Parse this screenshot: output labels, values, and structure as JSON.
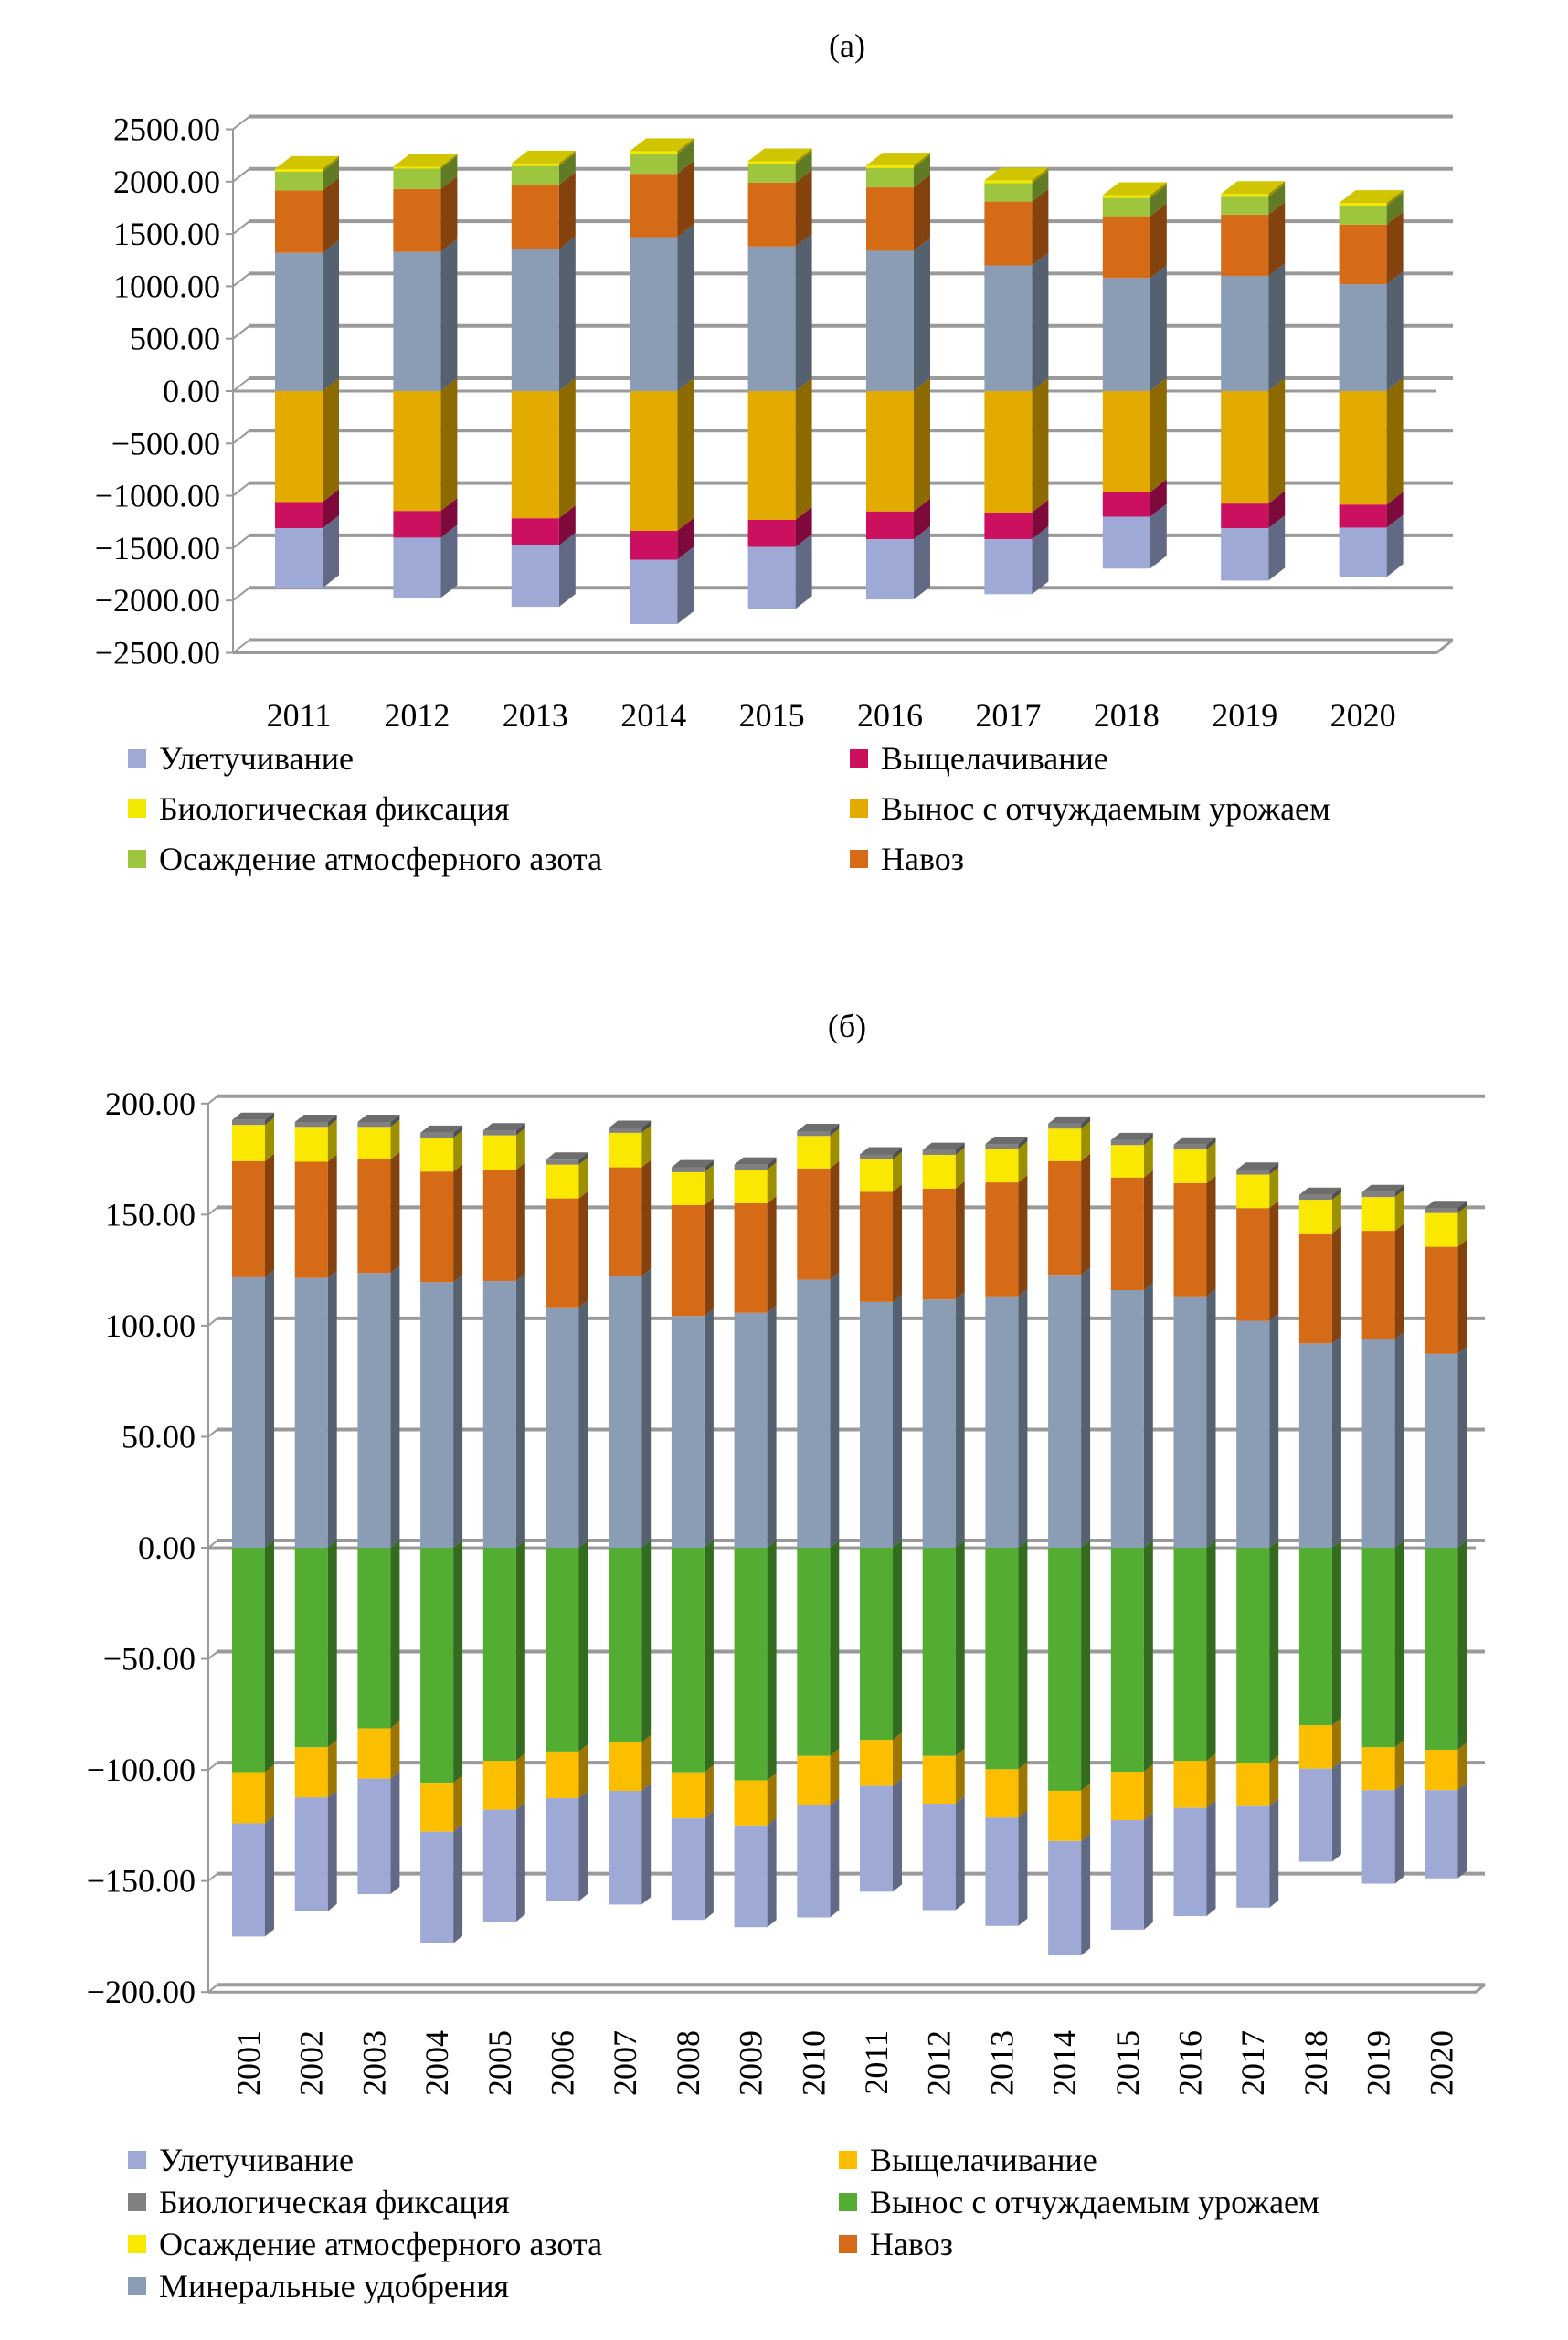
{
  "chart_data": [
    {
      "type": "bar",
      "stacked": true,
      "three_d": true,
      "title": "(а)",
      "xlabel": "",
      "ylabel": "",
      "ylim": [
        -2500,
        2500
      ],
      "yticks": [
        "2500.00",
        "2000.00",
        "1500.00",
        "1000.00",
        "500.00",
        "0.00",
        "−500.00",
        "−1000.00",
        "−1500.00",
        "−2000.00",
        "−2500.00"
      ],
      "ytick_values": [
        2500,
        2000,
        1500,
        1000,
        500,
        0,
        -500,
        -1000,
        -1500,
        -2000,
        -2500
      ],
      "grid": true,
      "legend_position": "bottom",
      "categories": [
        "2011",
        "2012",
        "2013",
        "2014",
        "2015",
        "2016",
        "2017",
        "2018",
        "2019",
        "2020"
      ],
      "series": [
        {
          "key": "mineral",
          "name": "",
          "sign": "pos",
          "color": "#8b9db5",
          "values": [
            1320,
            1330,
            1355,
            1470,
            1380,
            1340,
            1200,
            1080,
            1100,
            1020
          ]
        },
        {
          "key": "manure",
          "name": "Навоз",
          "sign": "pos",
          "color": "#d56a17",
          "values": [
            595,
            600,
            615,
            605,
            610,
            605,
            610,
            590,
            585,
            570
          ]
        },
        {
          "key": "deposition",
          "name": "Осаждение атмосферного азота",
          "sign": "pos",
          "color": "#9dc53d",
          "values": [
            180,
            195,
            180,
            190,
            180,
            185,
            175,
            175,
            170,
            180
          ]
        },
        {
          "key": "bio",
          "name": "Биологическая фиксация",
          "sign": "pos",
          "color": "#f5e800",
          "values": [
            27,
            17,
            24,
            27,
            25,
            24,
            27,
            27,
            28,
            27
          ]
        },
        {
          "key": "removal",
          "name": "Вынос с отчуждаемым урожаем",
          "sign": "neg",
          "color": "#e3ab00",
          "values": [
            -1060,
            -1145,
            -1215,
            -1335,
            -1230,
            -1150,
            -1160,
            -965,
            -1075,
            -1085
          ]
        },
        {
          "key": "leaching",
          "name": "Выщелачивание",
          "sign": "neg",
          "color": "#cc1060",
          "values": [
            -250,
            -255,
            -260,
            -275,
            -260,
            -265,
            -255,
            -235,
            -235,
            -220
          ]
        },
        {
          "key": "volatilization",
          "name": "Улетучивание",
          "sign": "neg",
          "color": "#9ea9d6",
          "values": [
            -570,
            -575,
            -585,
            -615,
            -590,
            -575,
            -525,
            -495,
            -500,
            -470
          ]
        }
      ],
      "legend": [
        {
          "label": "Улетучивание",
          "color": "#9ea9d6"
        },
        {
          "label": "Выщелачивание",
          "color": "#cc1060"
        },
        {
          "label": "Биологическая фиксация",
          "color": "#f5e800"
        },
        {
          "label": "Вынос с отчуждаемым урожаем",
          "color": "#e3ab00"
        },
        {
          "label": "Осаждение атмосферного азота",
          "color": "#9dc53d"
        },
        {
          "label": "Навоз",
          "color": "#d56a17"
        }
      ]
    },
    {
      "type": "bar",
      "stacked": true,
      "three_d": true,
      "title": "(б)",
      "xlabel": "",
      "ylabel": "",
      "ylim": [
        -200,
        200
      ],
      "yticks": [
        "200.00",
        "150.00",
        "100.00",
        "50.00",
        "0.00",
        "−50.00",
        "−100.00",
        "−150.00",
        "−200.00"
      ],
      "ytick_values": [
        200,
        150,
        100,
        50,
        0,
        -50,
        -100,
        -150,
        -200
      ],
      "grid": true,
      "legend_position": "bottom",
      "categories": [
        "2001",
        "2002",
        "2003",
        "2004",
        "2005",
        "2006",
        "2007",
        "2008",
        "2009",
        "2010",
        "2011",
        "2012",
        "2013",
        "2014",
        "2015",
        "2016",
        "2017",
        "2018",
        "2019",
        "2020"
      ],
      "series": [
        {
          "key": "mineral",
          "name": "Минеральные удобрения",
          "sign": "pos",
          "color": "#8b9db5",
          "values": [
            121.8,
            121.5,
            123.7,
            119.6,
            120.1,
            108.3,
            122.3,
            104.4,
            105.8,
            120.7,
            110.7,
            111.8,
            113.2,
            122.9,
            116.0,
            113.2,
            102.2,
            92.0,
            93.9,
            87.3
          ]
        },
        {
          "key": "manure",
          "name": "Навоз",
          "sign": "pos",
          "color": "#d56a17",
          "values": [
            52.3,
            52.3,
            51.2,
            49.8,
            50.1,
            49.0,
            49.0,
            49.9,
            49.3,
            50.1,
            49.6,
            49.9,
            51.3,
            51.2,
            50.7,
            51.0,
            50.7,
            49.6,
            48.8,
            48.2
          ]
        },
        {
          "key": "deposition",
          "name": "Осаждение атмосферного азота",
          "sign": "pos",
          "color": "#fbe800",
          "values": [
            16.3,
            15.7,
            14.6,
            15.2,
            15.5,
            15.2,
            15.5,
            14.8,
            15.1,
            14.6,
            14.6,
            15.2,
            15.1,
            14.6,
            14.6,
            15.1,
            15.1,
            15.1,
            15.2,
            15.2
          ]
        },
        {
          "key": "bio",
          "name": "Биологическая фиксация",
          "sign": "pos",
          "color": "#808080",
          "values": [
            2.2,
            2.2,
            2.2,
            2.2,
            2.2,
            2.2,
            2.2,
            2.2,
            2.3,
            2.2,
            2.2,
            2.2,
            2.2,
            2.2,
            2.2,
            2.2,
            2.2,
            2.2,
            2.2,
            2.2
          ]
        },
        {
          "key": "removal",
          "name": "Вынос с отчуждаемым урожаем",
          "sign": "neg",
          "color": "#52ad32",
          "values": [
            -101.0,
            -89.8,
            -81.3,
            -105.8,
            -95.9,
            -91.7,
            -87.6,
            -101.1,
            -104.7,
            -93.7,
            -86.5,
            -93.7,
            -99.7,
            -109.4,
            -100.8,
            -95.9,
            -96.7,
            -79.9,
            -89.8,
            -90.9
          ]
        },
        {
          "key": "leaching",
          "name": "Выщелачивание",
          "sign": "neg",
          "color": "#fbbf00",
          "values": [
            -23.0,
            -22.6,
            -22.6,
            -22.0,
            -22.0,
            -21.0,
            -21.8,
            -20.7,
            -20.3,
            -22.3,
            -20.7,
            -21.5,
            -21.8,
            -22.6,
            -21.8,
            -21.2,
            -19.6,
            -19.5,
            -19.3,
            -18.2
          ]
        },
        {
          "key": "volatilization",
          "name": "Улетучивание",
          "sign": "neg",
          "color": "#9ea9d6",
          "values": [
            -51.0,
            -51.2,
            -52.0,
            -50.2,
            -50.4,
            -46.3,
            -51.2,
            -45.7,
            -45.8,
            -50.4,
            -47.6,
            -47.9,
            -48.7,
            -51.5,
            -49.3,
            -48.7,
            -45.7,
            -41.9,
            -42.1,
            -39.7
          ]
        }
      ],
      "legend": [
        {
          "label": "Улетучивание",
          "color": "#9ea9d6"
        },
        {
          "label": "Выщелачивание",
          "color": "#fbbf00"
        },
        {
          "label": "Биологическая фиксация",
          "color": "#808080"
        },
        {
          "label": "Вынос с отчуждаемым урожаем",
          "color": "#52ad32"
        },
        {
          "label": "Осаждение атмосферного азота",
          "color": "#fbe800"
        },
        {
          "label": "Навоз",
          "color": "#d56a17"
        },
        {
          "label": "Минеральные удобрения",
          "color": "#8b9db5"
        }
      ]
    }
  ]
}
